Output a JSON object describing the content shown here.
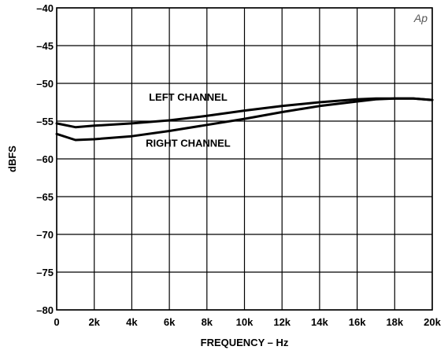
{
  "chart_data": {
    "type": "line",
    "xlabel": "FREQUENCY – Hz",
    "ylabel": "dBFS",
    "xlim": [
      0,
      20000
    ],
    "ylim": [
      -80,
      -40
    ],
    "x_ticks": [
      0,
      2000,
      4000,
      6000,
      8000,
      10000,
      12000,
      14000,
      16000,
      18000,
      20000
    ],
    "x_tick_labels": [
      "0",
      "2k",
      "4k",
      "6k",
      "8k",
      "10k",
      "12k",
      "14k",
      "16k",
      "18k",
      "20k"
    ],
    "y_ticks": [
      -40,
      -45,
      -50,
      -55,
      -60,
      -65,
      -70,
      -75,
      -80
    ],
    "y_tick_labels": [
      "–40",
      "–45",
      "–50",
      "–55",
      "–60",
      "–65",
      "–70",
      "–75",
      "–80"
    ],
    "grid": true,
    "series": [
      {
        "name": "LEFT CHANNEL",
        "x": [
          0,
          1000,
          2000,
          4000,
          6000,
          8000,
          10000,
          12000,
          14000,
          16000,
          17000,
          18000,
          19000,
          20000
        ],
        "y": [
          -55.3,
          -55.8,
          -55.6,
          -55.3,
          -54.9,
          -54.3,
          -53.6,
          -53.0,
          -52.5,
          -52.1,
          -52.0,
          -52.0,
          -52.0,
          -52.2
        ]
      },
      {
        "name": "RIGHT CHANNEL",
        "x": [
          0,
          1000,
          2000,
          4000,
          6000,
          8000,
          10000,
          12000,
          14000,
          16000,
          17000,
          18000,
          19000,
          20000
        ],
        "y": [
          -56.7,
          -57.5,
          -57.4,
          -57.0,
          -56.3,
          -55.5,
          -54.7,
          -53.8,
          -53.0,
          -52.4,
          -52.1,
          -52.0,
          -52.0,
          -52.2
        ]
      }
    ],
    "annotations": [
      {
        "text": "LEFT CHANNEL",
        "x": 7000,
        "y": -52.3
      },
      {
        "text": "RIGHT CHANNEL",
        "x": 7000,
        "y": -58.4
      }
    ],
    "badge": "Ap"
  }
}
